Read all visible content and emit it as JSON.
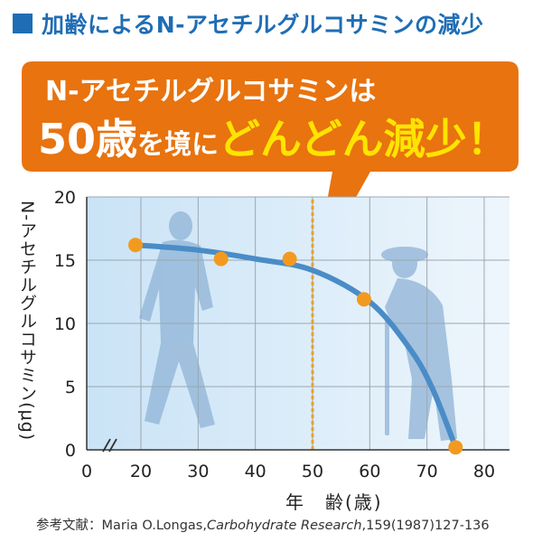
{
  "header": {
    "title": "加齢によるN-アセチルグルコサミンの減少"
  },
  "callout": {
    "line1": "N-アセチルグルコサミンは",
    "line2_num": "50歳",
    "line2_mid": "を境に",
    "line2_emph": "どんどん減少！"
  },
  "colors": {
    "accent_blue": "#1f6db5",
    "callout_orange": "#e8730f",
    "emph_yellow": "#ffe400",
    "curve": "#4a8cc7",
    "point": "#f29a1f",
    "marker": "#e6a12c"
  },
  "chart_data": {
    "type": "line",
    "title": "加齢によるN-アセチルグルコサミンの減少",
    "xlabel": "年　齢(歳)",
    "ylabel": "N-アセチルグルコサミン(μg)",
    "xlim": [
      0,
      80
    ],
    "ylim": [
      0,
      20
    ],
    "x_ticks": [
      0,
      20,
      30,
      40,
      50,
      60,
      70,
      80
    ],
    "y_ticks": [
      0,
      5,
      10,
      15,
      20
    ],
    "axis_break": true,
    "grid": true,
    "reference_line_x": 50,
    "points": [
      {
        "x": 18,
        "y": 16.2
      },
      {
        "x": 34,
        "y": 15.1
      },
      {
        "x": 46,
        "y": 15.1
      },
      {
        "x": 59,
        "y": 11.9
      },
      {
        "x": 75,
        "y": 0.2
      }
    ],
    "curve": [
      {
        "x": 18,
        "y": 16.2
      },
      {
        "x": 30,
        "y": 15.8
      },
      {
        "x": 40,
        "y": 15.1
      },
      {
        "x": 50,
        "y": 14.2
      },
      {
        "x": 60,
        "y": 11.7
      },
      {
        "x": 67,
        "y": 8.0
      },
      {
        "x": 71,
        "y": 4.8
      },
      {
        "x": 75,
        "y": 0.2
      }
    ]
  },
  "source": {
    "prefix": "参考文献：Maria O.Longas,",
    "journal": "Carbohydrate Research",
    "suffix": ",159(1987)127-136"
  }
}
